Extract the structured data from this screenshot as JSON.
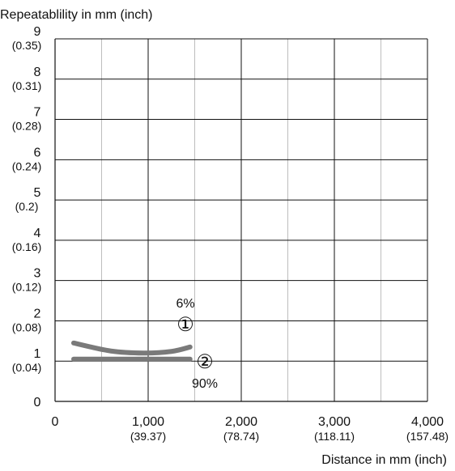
{
  "chart_data": {
    "type": "line",
    "ylabel": "Repeatablility in mm (inch)",
    "xlabel": "Distance in mm (inch)",
    "xlim": [
      0,
      4000
    ],
    "ylim": [
      0,
      9
    ],
    "grid": true,
    "x_major_ticks": [
      0,
      1000,
      2000,
      3000,
      4000
    ],
    "x_minor_gridlines": [
      500,
      1500,
      2500,
      3500
    ],
    "x_tick_labels": [
      "0",
      "1,000",
      "2,000",
      "3,000",
      "4,000"
    ],
    "x_tick_sublabels": [
      "",
      "(39.37)",
      "(78.74)",
      "(118.11)",
      "(157.48)"
    ],
    "y_ticks": [
      0,
      1,
      2,
      3,
      4,
      5,
      6,
      7,
      8,
      9
    ],
    "y_tick_labels": [
      "0",
      "1",
      "2",
      "3",
      "4",
      "5",
      "6",
      "7",
      "8",
      "9"
    ],
    "y_tick_sublabels": [
      "",
      "(0.04)",
      "(0.08)",
      "(0.12)",
      "(0.16)",
      "(0.2)",
      "(0.24)",
      "(0.28)",
      "(0.31)",
      "(0.35)"
    ],
    "series": [
      {
        "label_marker": "①",
        "label_text": "6%",
        "color": "#7a7a7a",
        "points": [
          [
            200,
            1.45
          ],
          [
            600,
            1.25
          ],
          [
            950,
            1.2
          ],
          [
            1250,
            1.24
          ],
          [
            1450,
            1.35
          ]
        ]
      },
      {
        "label_marker": "②",
        "label_text": "90%",
        "color": "#7a7a7a",
        "points": [
          [
            200,
            1.05
          ],
          [
            800,
            1.05
          ],
          [
            1450,
            1.05
          ]
        ]
      }
    ]
  }
}
